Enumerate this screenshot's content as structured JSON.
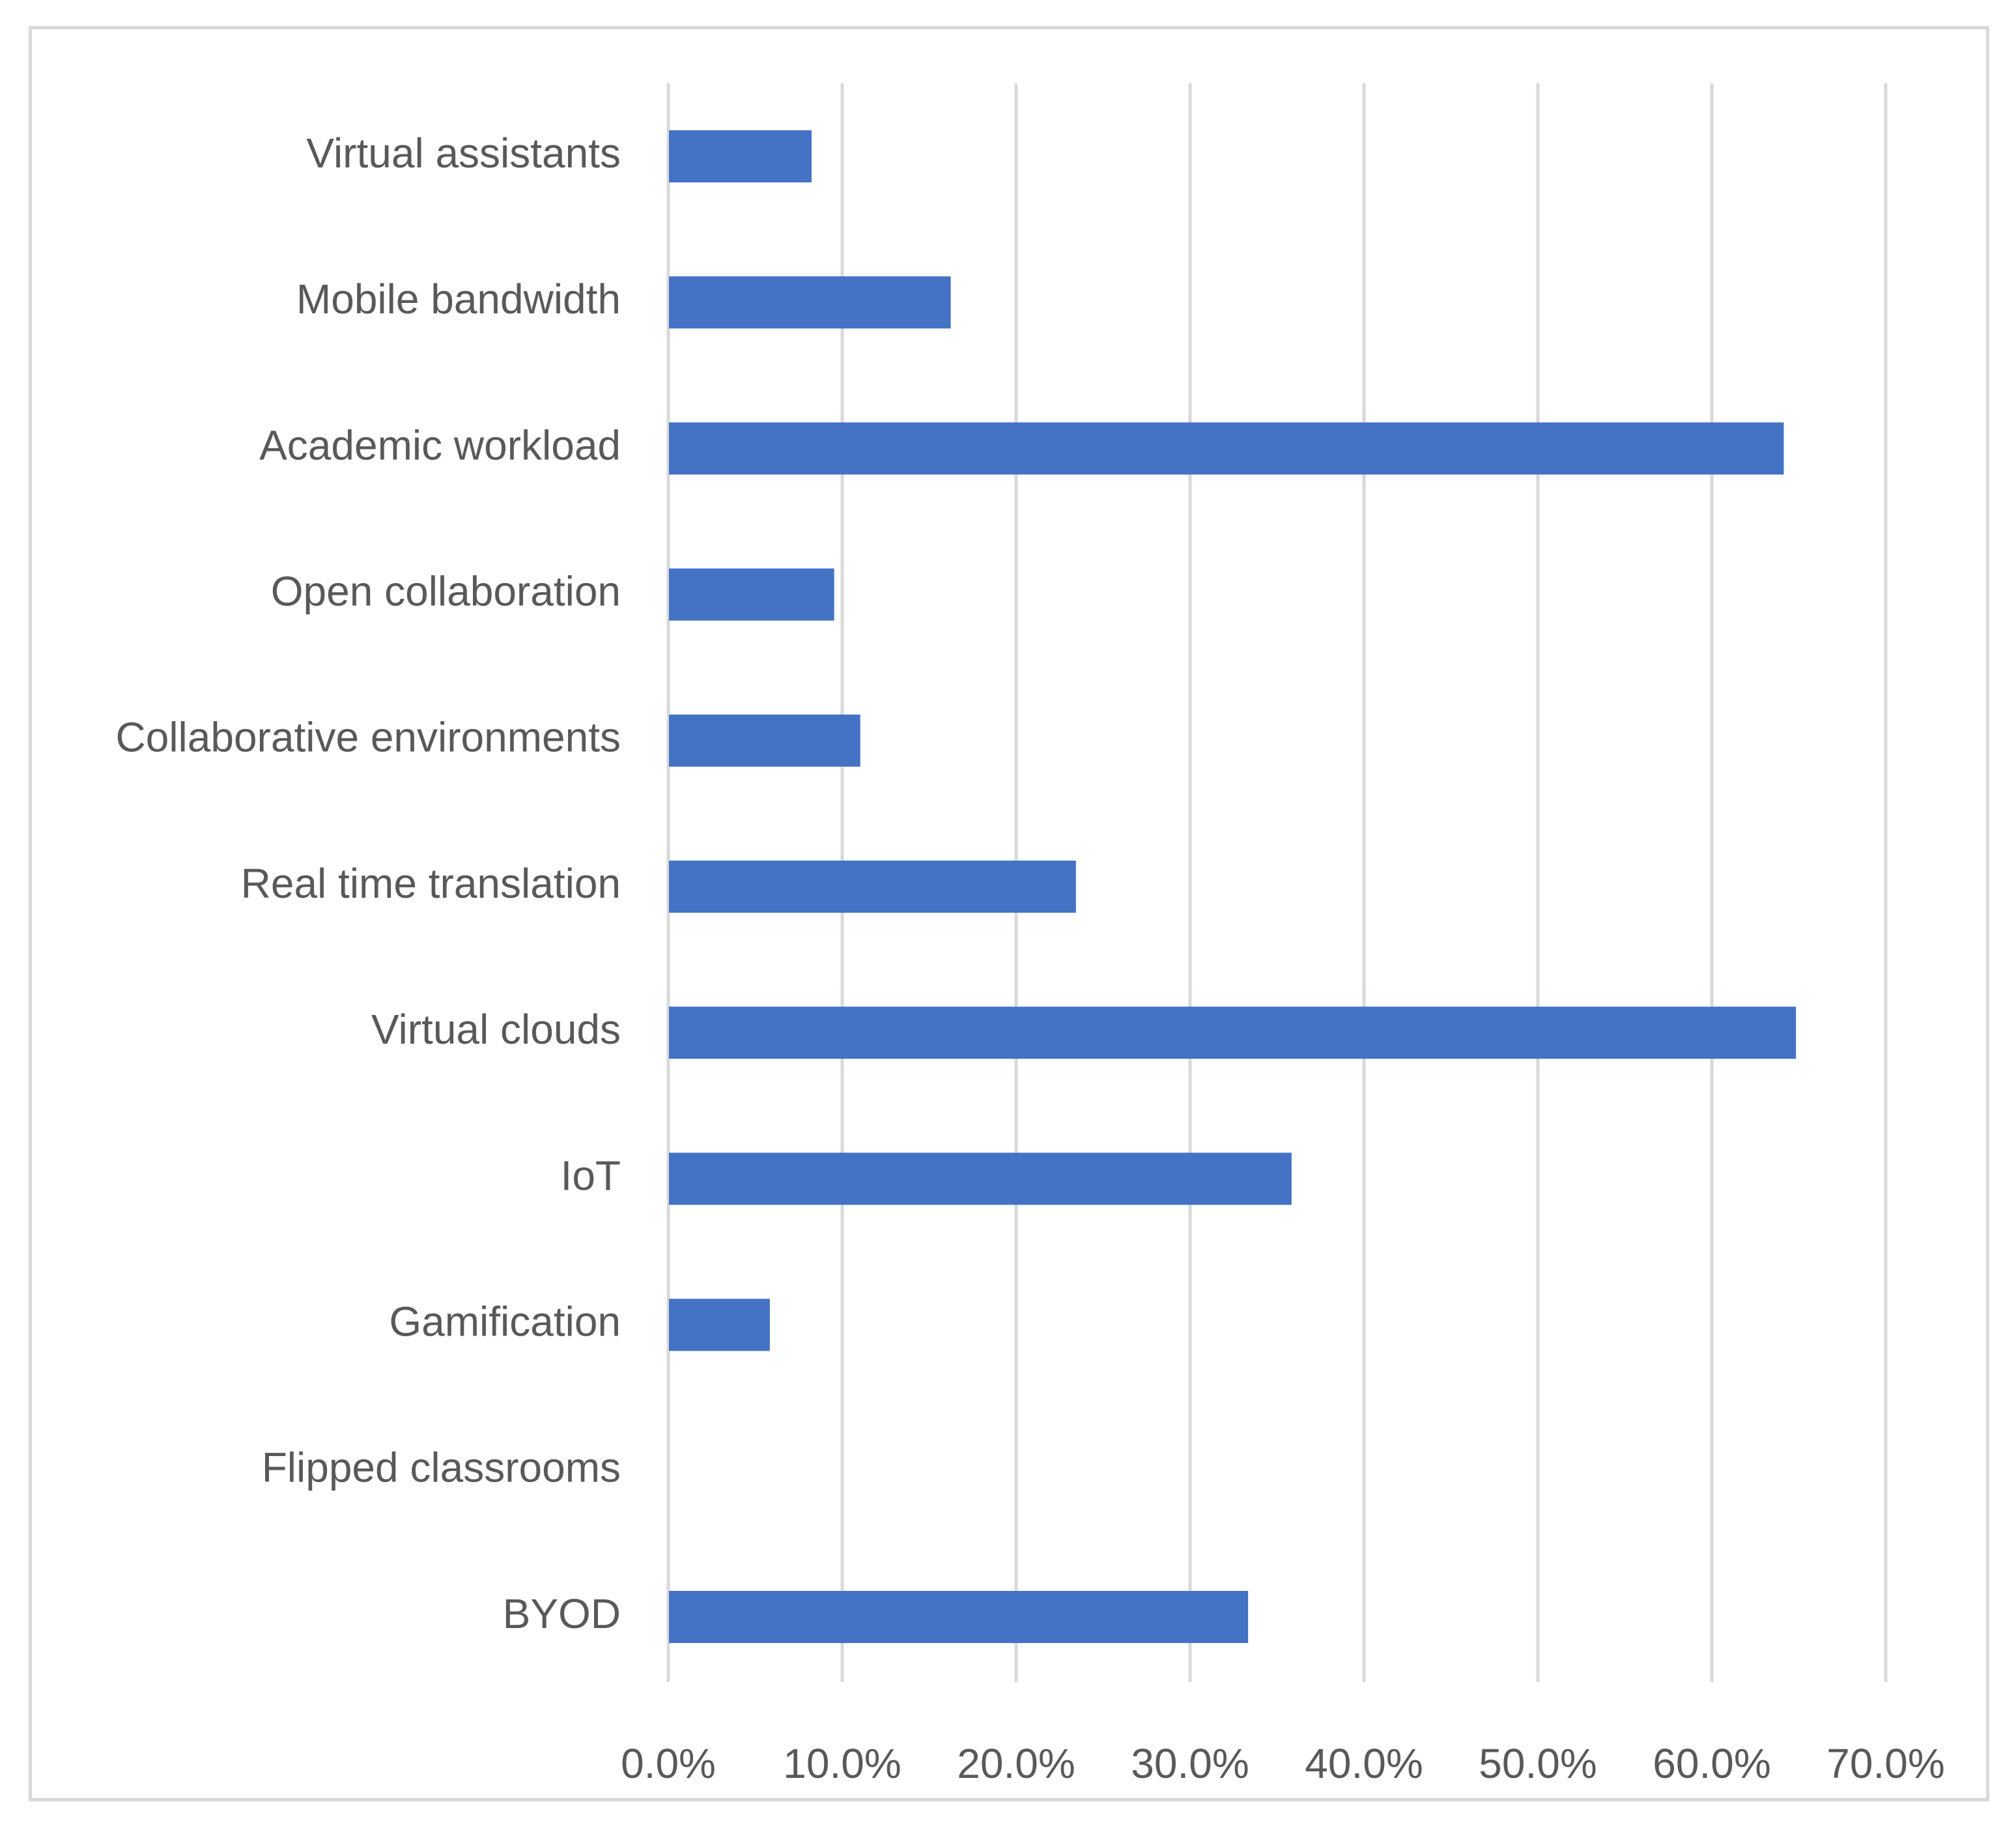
{
  "chart_data": {
    "type": "bar",
    "orientation": "horizontal",
    "title": "",
    "xlabel": "",
    "ylabel": "",
    "categories": [
      "Virtual assistants",
      "Mobile bandwidth",
      "Academic workload",
      "Open collaboration",
      "Collaborative environments",
      "Real time translation",
      "Virtual clouds",
      "IoT",
      "Gamification",
      "Flipped classrooms",
      "BYOD"
    ],
    "values": [
      0.082,
      0.162,
      0.641,
      0.095,
      0.11,
      0.234,
      0.648,
      0.358,
      0.058,
      0.0,
      0.333
    ],
    "xlim": [
      0,
      0.7
    ],
    "x_ticks": [
      0,
      0.1,
      0.2,
      0.3,
      0.4,
      0.5,
      0.6,
      0.7
    ],
    "x_tick_labels": [
      "0.0%",
      "10.0%",
      "20.0%",
      "30.0%",
      "40.0%",
      "50.0%",
      "60.0%",
      "70.0%"
    ],
    "grid": "vertical",
    "legend": "none",
    "bar_color": "#4472C4",
    "grid_color": "#D9D9D9",
    "text_color": "#595959"
  }
}
